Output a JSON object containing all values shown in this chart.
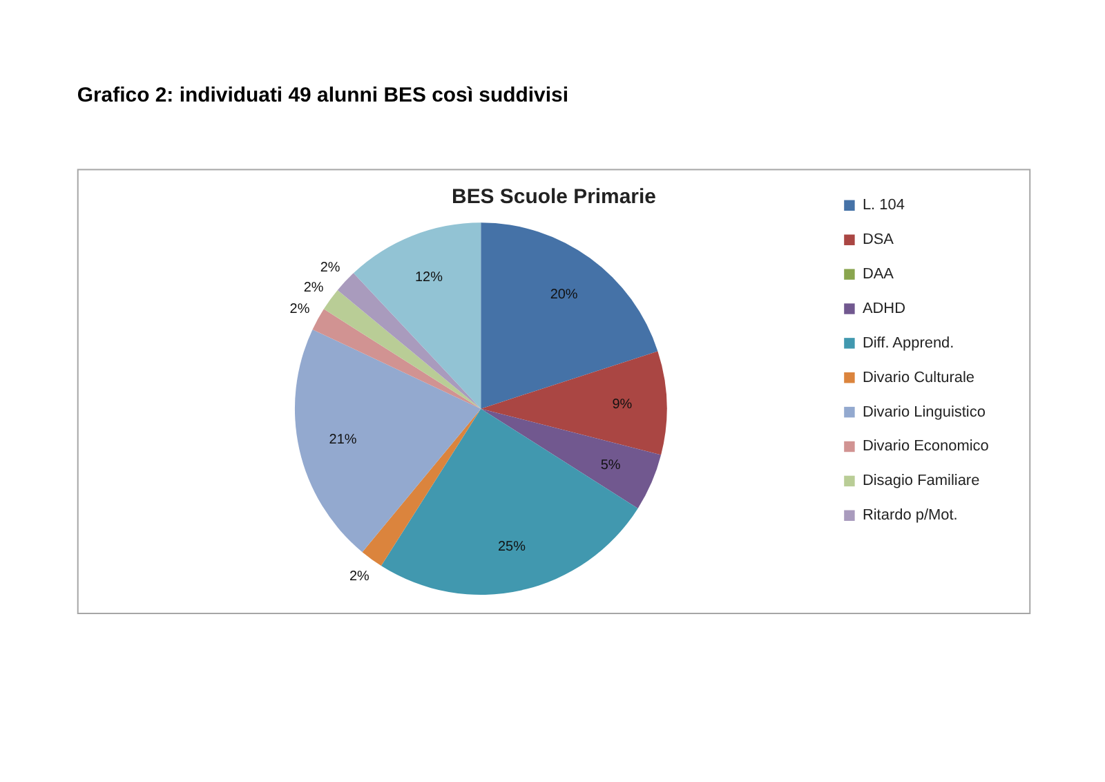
{
  "chart_data": {
    "type": "pie",
    "title": "BES Scuole Primarie",
    "annotations": [
      "Grafico 2: individuati 49 alunni BES così suddivisi"
    ],
    "categories": [
      "L. 104",
      "DSA",
      "DAA",
      "ADHD",
      "Diff. Apprend.",
      "Divario Culturale",
      "Divario Linguistico",
      "Divario Economico",
      "Disagio Familiare",
      "Ritardo p/Mot.",
      null
    ],
    "values": [
      20,
      9,
      0,
      5,
      25,
      2,
      21,
      2,
      2,
      2,
      12
    ],
    "colors": [
      "#4572a7",
      "#aa4643",
      "#89a54e",
      "#71588f",
      "#4198af",
      "#db843d",
      "#93a9cf",
      "#d19392",
      "#b9cd96",
      "#a99bbd",
      "#92c3d4"
    ],
    "value_labels": [
      "20%",
      "9%",
      null,
      "5%",
      "25%",
      "2%",
      "21%",
      "2%",
      "2%",
      "2%",
      "12%"
    ],
    "legend": "right"
  }
}
